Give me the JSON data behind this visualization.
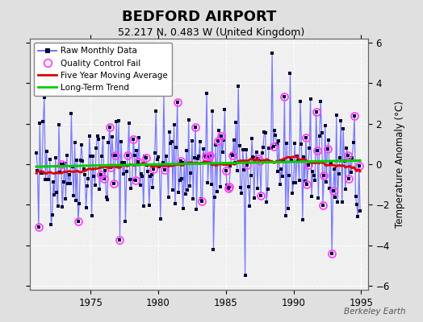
{
  "title": "BEDFORD AIRPORT",
  "subtitle": "52.217 N, 0.483 W (United Kingdom)",
  "ylabel": "Temperature Anomaly (°C)",
  "watermark": "Berkeley Earth",
  "xlim": [
    1970.5,
    1995.5
  ],
  "ylim": [
    -6.2,
    6.2
  ],
  "yticks": [
    -6,
    -4,
    -2,
    0,
    2,
    4,
    6
  ],
  "xticks": [
    1975,
    1980,
    1985,
    1990,
    1995
  ],
  "bg_color": "#e0e0e0",
  "plot_bg_color": "#f0f0f0",
  "grid_color": "#ffffff",
  "title_fontsize": 13,
  "subtitle_fontsize": 9,
  "moving_avg_color": "#dd0000",
  "trend_color": "#00cc00",
  "raw_line_color": "#6666ff",
  "raw_marker_color": "#000033",
  "qc_fail_color": "#ff44ff",
  "seed": 42
}
